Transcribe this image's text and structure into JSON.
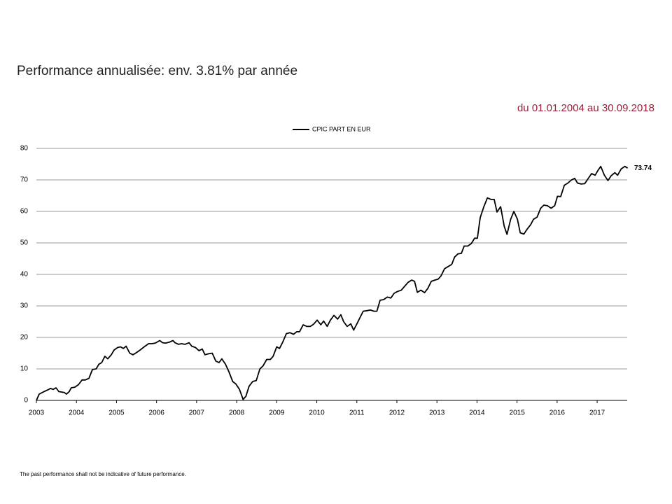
{
  "chart_data": {
    "type": "line",
    "title": "Performance annualisée: env. 3.81% par année",
    "subtitle": "du 01.01.2004 au 30.09.2018",
    "footnote": "The past performance shall not be indicative of future performance.",
    "x": [
      2003.0,
      2003.07,
      2003.19,
      2003.31,
      2003.35,
      2003.42,
      2003.49,
      2003.56,
      2003.7,
      2003.75,
      2003.82,
      2003.87,
      2003.96,
      2004.05,
      2004.14,
      2004.22,
      2004.31,
      2004.4,
      2004.49,
      2004.56,
      2004.63,
      2004.71,
      2004.78,
      2004.87,
      2004.94,
      2005.03,
      2005.1,
      2005.17,
      2005.24,
      2005.33,
      2005.41,
      2005.5,
      2005.59,
      2005.67,
      2005.8,
      2005.88,
      2005.97,
      2006.08,
      2006.15,
      2006.23,
      2006.32,
      2006.41,
      2006.46,
      2006.55,
      2006.62,
      2006.71,
      2006.81,
      2006.88,
      2006.97,
      2007.06,
      2007.14,
      2007.21,
      2007.3,
      2007.39,
      2007.48,
      2007.56,
      2007.63,
      2007.72,
      2007.81,
      2007.9,
      2007.98,
      2008.07,
      2008.16,
      2008.23,
      2008.31,
      2008.4,
      2008.49,
      2008.58,
      2008.66,
      2008.75,
      2008.84,
      2008.91,
      2009.0,
      2009.07,
      2009.15,
      2009.24,
      2009.33,
      2009.42,
      2009.5,
      2009.57,
      2009.66,
      2009.75,
      2009.84,
      2009.92,
      2010.01,
      2010.1,
      2010.17,
      2010.26,
      2010.34,
      2010.43,
      2010.52,
      2010.6,
      2010.67,
      2010.76,
      2010.85,
      2010.92,
      2011.01,
      2011.08,
      2011.16,
      2011.25,
      2011.34,
      2011.43,
      2011.5,
      2011.58,
      2011.67,
      2011.76,
      2011.85,
      2011.93,
      2012.02,
      2012.11,
      2012.2,
      2012.28,
      2012.37,
      2012.44,
      2012.51,
      2012.6,
      2012.69,
      2012.77,
      2012.86,
      2012.95,
      2013.03,
      2013.1,
      2013.19,
      2013.28,
      2013.37,
      2013.44,
      2013.52,
      2013.61,
      2013.68,
      2013.77,
      2013.86,
      2013.94,
      2014.01,
      2014.08,
      2014.17,
      2014.26,
      2014.35,
      2014.43,
      2014.5,
      2014.59,
      2014.68,
      2014.75,
      2014.84,
      2014.92,
      2015.01,
      2015.08,
      2015.17,
      2015.26,
      2015.34,
      2015.41,
      2015.5,
      2015.59,
      2015.67,
      2015.76,
      2015.85,
      2015.94,
      2016.01,
      2016.09,
      2016.18,
      2016.27,
      2016.36,
      2016.44,
      2016.51,
      2016.6,
      2016.69,
      2016.78,
      2016.86,
      2016.95,
      2017.02,
      2017.09,
      2017.18,
      2017.27,
      2017.35,
      2017.44,
      2017.51,
      2017.6,
      2017.69,
      2017.76
    ],
    "series": [
      {
        "name": "CPIC PART EN EUR",
        "color": "#000000",
        "values": [
          0,
          2,
          2.8,
          3.5,
          3.8,
          3.5,
          4,
          2.8,
          2.5,
          2,
          2.8,
          4,
          4.2,
          5,
          6.5,
          6.5,
          7,
          9.8,
          10,
          11.5,
          12,
          14,
          13.2,
          14.5,
          16,
          16.8,
          17,
          16.5,
          17.2,
          15,
          14.5,
          15.2,
          16,
          16.8,
          18,
          18,
          18.2,
          19,
          18.3,
          18.2,
          18.5,
          19,
          18.3,
          17.8,
          18,
          17.8,
          18.3,
          17.2,
          16.8,
          15.8,
          16.3,
          14.5,
          14.8,
          15,
          12.5,
          12,
          13.2,
          11.5,
          9,
          6,
          5.2,
          3.5,
          0.3,
          1.3,
          4.5,
          6,
          6.3,
          10,
          11,
          13,
          13,
          14,
          17,
          16.5,
          18.5,
          21.2,
          21.5,
          21,
          21.8,
          21.8,
          24,
          23.5,
          23.5,
          24.2,
          25.5,
          24,
          25.2,
          23.5,
          25.5,
          27,
          25.8,
          27.2,
          25,
          23.5,
          24.3,
          22.3,
          24.5,
          26.3,
          28.3,
          28.5,
          28.7,
          28.3,
          28.3,
          31.8,
          32,
          32.8,
          32.5,
          34,
          34.6,
          35,
          36.3,
          37.5,
          38.2,
          37.8,
          34.3,
          35,
          34.2,
          35.5,
          37.8,
          38.2,
          38.5,
          39.5,
          41.8,
          42.5,
          43.2,
          45.5,
          46.5,
          46.7,
          49,
          49,
          49.8,
          51.5,
          51.5,
          58,
          61.5,
          64.3,
          63.8,
          63.8,
          59.8,
          61.5,
          55.3,
          52.7,
          57.5,
          60,
          57.5,
          53.2,
          52.8,
          54.5,
          55.8,
          57.5,
          58.2,
          61,
          62,
          61.8,
          61,
          61.8,
          64.8,
          64.7,
          68.3,
          69,
          70,
          70.5,
          69,
          68.7,
          68.8,
          70.5,
          72,
          71.5,
          73,
          74.3,
          71.5,
          69.8,
          71.3,
          72.3,
          71.5,
          73.5,
          74.3,
          73.74
        ]
      }
    ],
    "xlim": [
      2003,
      2017.75
    ],
    "xticks": [
      2003,
      2004,
      2005,
      2006,
      2007,
      2008,
      2009,
      2010,
      2011,
      2012,
      2013,
      2014,
      2015,
      2016,
      2017
    ],
    "ylim": [
      0,
      80
    ],
    "yticks": [
      0,
      10,
      20,
      30,
      40,
      50,
      60,
      70,
      80
    ],
    "grid": true,
    "legend": "top"
  }
}
